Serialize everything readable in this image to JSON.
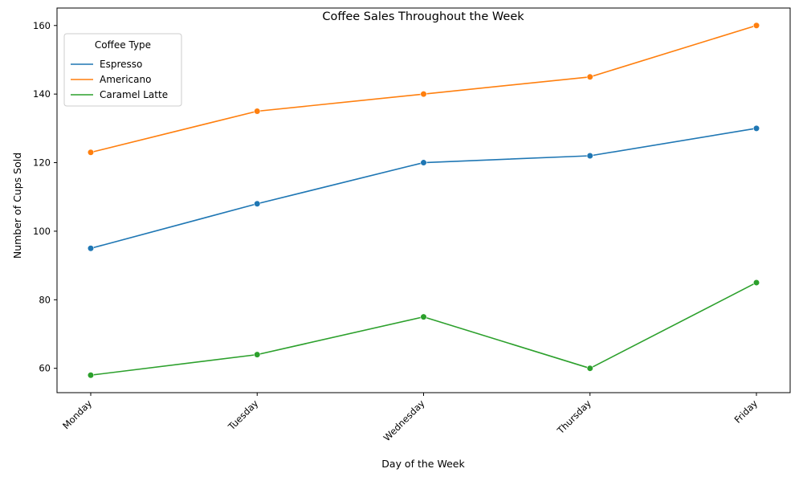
{
  "chart_data": {
    "type": "line",
    "title": "Coffee Sales Throughout the Week",
    "xlabel": "Day of the Week",
    "ylabel": "Number of Cups Sold",
    "categories": [
      "Monday",
      "Tuesday",
      "Wednesday",
      "Thursday",
      "Friday"
    ],
    "series": [
      {
        "name": "Espresso",
        "color": "#1f77b4",
        "values": [
          95,
          108,
          120,
          122,
          130
        ]
      },
      {
        "name": "Americano",
        "color": "#ff7f0e",
        "values": [
          123,
          135,
          140,
          145,
          160
        ]
      },
      {
        "name": "Caramel Latte",
        "color": "#2ca02c",
        "values": [
          58,
          64,
          75,
          60,
          85
        ]
      }
    ],
    "ylim": [
      52.9,
      165.1
    ],
    "yticks": [
      60,
      80,
      100,
      120,
      140,
      160
    ],
    "grid": false,
    "legend": {
      "title": "Coffee Type",
      "position": "top-left"
    },
    "markers": "circle"
  }
}
